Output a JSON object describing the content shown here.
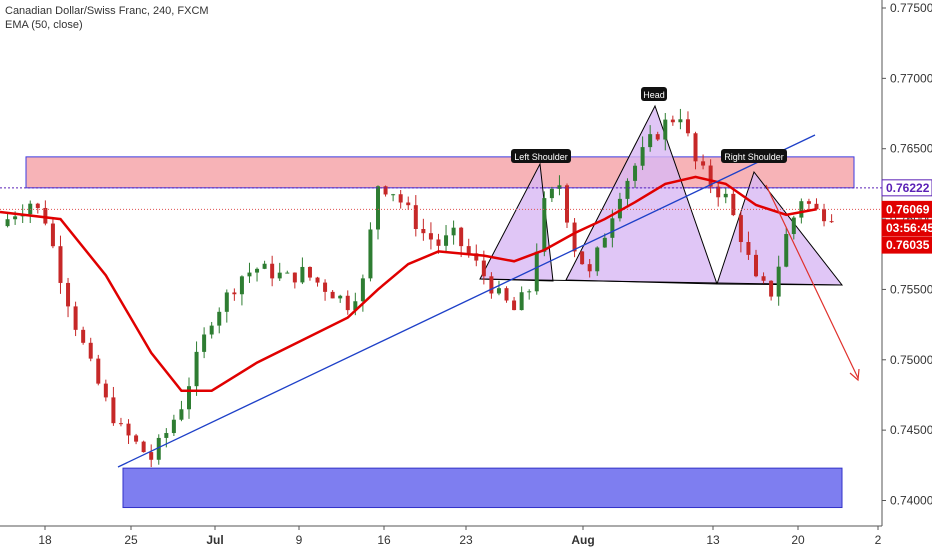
{
  "header": {
    "symbol_line": "Canadian Dollar/Swiss Franc, 240, FXCM",
    "indicator_line": "EMA (50, close)"
  },
  "colors": {
    "up_candle": "#2e7d32",
    "down_candle": "#c62828",
    "ema": "#e00000",
    "trendline": "#1e40c8",
    "resistance_zone": "#f49a9f",
    "support_zone": "#7070ee",
    "pattern_fill": "#d8b8f4",
    "arrow": "#e0312c",
    "tag_price": "#e00000",
    "tag_dashed": "#5b21b6"
  },
  "chart_data": {
    "type": "candlestick",
    "y_axis": {
      "ticks": [
        "0.77500",
        "0.77000",
        "0.76500",
        "0.76000",
        "0.75500",
        "0.75000",
        "0.74500",
        "0.74000"
      ],
      "range": [
        0.7368,
        0.779
      ]
    },
    "x_axis": {
      "ticks": [
        "18",
        "25",
        "Jul",
        "9",
        "16",
        "23",
        "Aug",
        "13",
        "20",
        "2"
      ],
      "bold_ticks": [
        "Jul",
        "Aug"
      ]
    },
    "price_tags": [
      {
        "label": "0.76222",
        "value": 0.76222,
        "style": "outline"
      },
      {
        "label": "0.76069",
        "value": 0.76069,
        "style": "filled"
      },
      {
        "label": "03:56:45",
        "value": 0.75938,
        "style": "filled"
      },
      {
        "label": "0.76035",
        "value": 0.75815,
        "style": "filled"
      }
    ],
    "pattern_labels": [
      "Left Shoulder",
      "Head",
      "Right Shoulder"
    ],
    "close_path": [
      [
        0,
        0.7595
      ],
      [
        2,
        0.7605
      ],
      [
        4,
        0.7612
      ],
      [
        6,
        0.76
      ],
      [
        8,
        0.756
      ],
      [
        10,
        0.7525
      ],
      [
        12,
        0.7495
      ],
      [
        14,
        0.747
      ],
      [
        16,
        0.745
      ],
      [
        18,
        0.744
      ],
      [
        20,
        0.743
      ],
      [
        22,
        0.7448
      ],
      [
        24,
        0.7468
      ],
      [
        26,
        0.75
      ],
      [
        28,
        0.753
      ],
      [
        30,
        0.7545
      ],
      [
        32,
        0.756
      ],
      [
        34,
        0.7565
      ],
      [
        36,
        0.7562
      ],
      [
        38,
        0.7558
      ],
      [
        40,
        0.7562
      ],
      [
        42,
        0.7555
      ],
      [
        44,
        0.7548
      ],
      [
        46,
        0.754
      ],
      [
        48,
        0.7555
      ],
      [
        50,
        0.7625
      ],
      [
        52,
        0.762
      ],
      [
        54,
        0.7605
      ],
      [
        56,
        0.759
      ],
      [
        58,
        0.7582
      ],
      [
        60,
        0.7588
      ],
      [
        62,
        0.7575
      ],
      [
        64,
        0.756
      ],
      [
        66,
        0.7545
      ],
      [
        68,
        0.7535
      ],
      [
        70,
        0.755
      ],
      [
        72,
        0.761
      ],
      [
        74,
        0.7625
      ],
      [
        76,
        0.758
      ],
      [
        78,
        0.756
      ],
      [
        80,
        0.759
      ],
      [
        82,
        0.762
      ],
      [
        84,
        0.7638
      ],
      [
        86,
        0.7655
      ],
      [
        88,
        0.7668
      ],
      [
        90,
        0.7675
      ],
      [
        92,
        0.764
      ],
      [
        94,
        0.7625
      ],
      [
        96,
        0.7615
      ],
      [
        98,
        0.7588
      ],
      [
        100,
        0.7555
      ],
      [
        102,
        0.7548
      ],
      [
        104,
        0.7588
      ],
      [
        106,
        0.7615
      ],
      [
        108,
        0.7605
      ],
      [
        110,
        0.7604
      ]
    ],
    "ema_path": [
      [
        0,
        0.7605
      ],
      [
        8,
        0.76
      ],
      [
        14,
        0.756
      ],
      [
        20,
        0.7505
      ],
      [
        24,
        0.7478
      ],
      [
        28,
        0.7478
      ],
      [
        34,
        0.7498
      ],
      [
        40,
        0.7514
      ],
      [
        46,
        0.753
      ],
      [
        50,
        0.755
      ],
      [
        54,
        0.7568
      ],
      [
        58,
        0.7577
      ],
      [
        64,
        0.7574
      ],
      [
        68,
        0.757
      ],
      [
        72,
        0.7578
      ],
      [
        76,
        0.759
      ],
      [
        80,
        0.76
      ],
      [
        84,
        0.7612
      ],
      [
        88,
        0.7625
      ],
      [
        92,
        0.763
      ],
      [
        96,
        0.7625
      ],
      [
        100,
        0.761
      ],
      [
        104,
        0.7603
      ],
      [
        108,
        0.7607
      ]
    ]
  }
}
